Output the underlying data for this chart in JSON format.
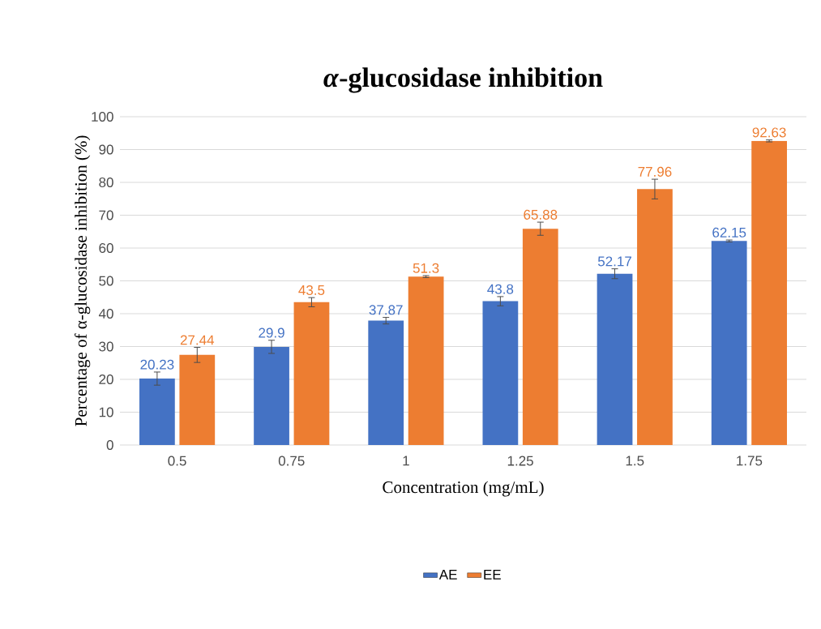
{
  "chart_data": {
    "type": "bar",
    "title": "*α*-glucosidase inhibition",
    "xlabel": "Concentration (mg/mL)",
    "ylabel": "Percentage of α-glucosidase inhibition (%)",
    "categories": [
      "0.5",
      "0.75",
      "1",
      "1.25",
      "1.5",
      "1.75"
    ],
    "series": [
      {
        "name": "AE",
        "color": "#4472c4",
        "values": [
          20.23,
          29.9,
          37.87,
          43.8,
          52.17,
          62.15
        ],
        "errors": [
          2,
          2,
          1,
          1.4,
          1.5,
          0.3
        ]
      },
      {
        "name": "EE",
        "color": "#ed7d31",
        "values": [
          27.44,
          43.5,
          51.3,
          65.88,
          77.96,
          92.63
        ],
        "errors": [
          2.3,
          1.4,
          0.3,
          2,
          3,
          0.3
        ]
      }
    ],
    "ylim": [
      0,
      100
    ],
    "yticks": [
      0,
      10,
      20,
      30,
      40,
      50,
      60,
      70,
      80,
      90,
      100
    ],
    "grid": "y",
    "legend": "bottom",
    "data_labels": true
  }
}
